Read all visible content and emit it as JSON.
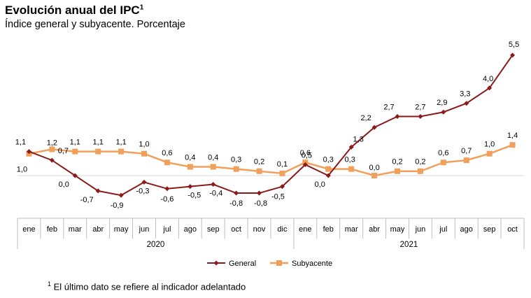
{
  "title": "Evolución anual del IPC",
  "title_sup": "1",
  "subtitle": "Índice general y subyacente. Porcentaje",
  "footnote_sup": "1",
  "footnote": "El último dato se refiere al indicador adelantado",
  "chart_data": {
    "type": "line",
    "categories": [
      "ene",
      "feb",
      "mar",
      "abr",
      "may",
      "jun",
      "jul",
      "ago",
      "sep",
      "oct",
      "nov",
      "dic",
      "ene",
      "feb",
      "mar",
      "abr",
      "may",
      "jun",
      "jul",
      "ago",
      "sep",
      "oct"
    ],
    "years": [
      {
        "label": "2020",
        "start": 0,
        "end": 11
      },
      {
        "label": "2021",
        "start": 12,
        "end": 21
      }
    ],
    "series": [
      {
        "name": "General",
        "color": "#8b1a1a",
        "marker": "diamond",
        "values": [
          1.1,
          0.7,
          0.0,
          -0.7,
          -0.9,
          -0.3,
          -0.6,
          -0.5,
          -0.4,
          -0.8,
          -0.8,
          -0.5,
          0.5,
          0.0,
          1.3,
          2.2,
          2.7,
          2.7,
          2.9,
          3.3,
          4.0,
          5.5
        ],
        "labels": [
          "1,1",
          "0,7",
          "0,0",
          "-0,7",
          "-0,9",
          "-0,3",
          "-0,6",
          "-0,5",
          "-0,4",
          "-0,8",
          "-0,8",
          "-0,5",
          "0,5",
          "0,0",
          "1,3",
          "2,2",
          "2,7",
          "2,7",
          "2,9",
          "3,3",
          "4,0",
          "5,5"
        ]
      },
      {
        "name": "Subyacente",
        "color": "#f0a05a",
        "marker": "square",
        "values": [
          1.0,
          1.2,
          1.1,
          1.1,
          1.1,
          1.0,
          0.6,
          0.4,
          0.4,
          0.3,
          0.2,
          0.1,
          0.6,
          0.3,
          0.3,
          0.0,
          0.2,
          0.2,
          0.6,
          0.7,
          1.0,
          1.4
        ],
        "labels": [
          "1,0",
          "1,2",
          "1,1",
          "1,1",
          "1,1",
          "1,0",
          "0,6",
          "0,4",
          "0,4",
          "0,3",
          "0,2",
          "0,1",
          "0,6",
          "0,3",
          "0,3",
          "0,0",
          "0,2",
          "0,2",
          "0,6",
          "0,7",
          "1,0",
          "1,4"
        ]
      }
    ],
    "legend": "bottom",
    "grid": false
  }
}
